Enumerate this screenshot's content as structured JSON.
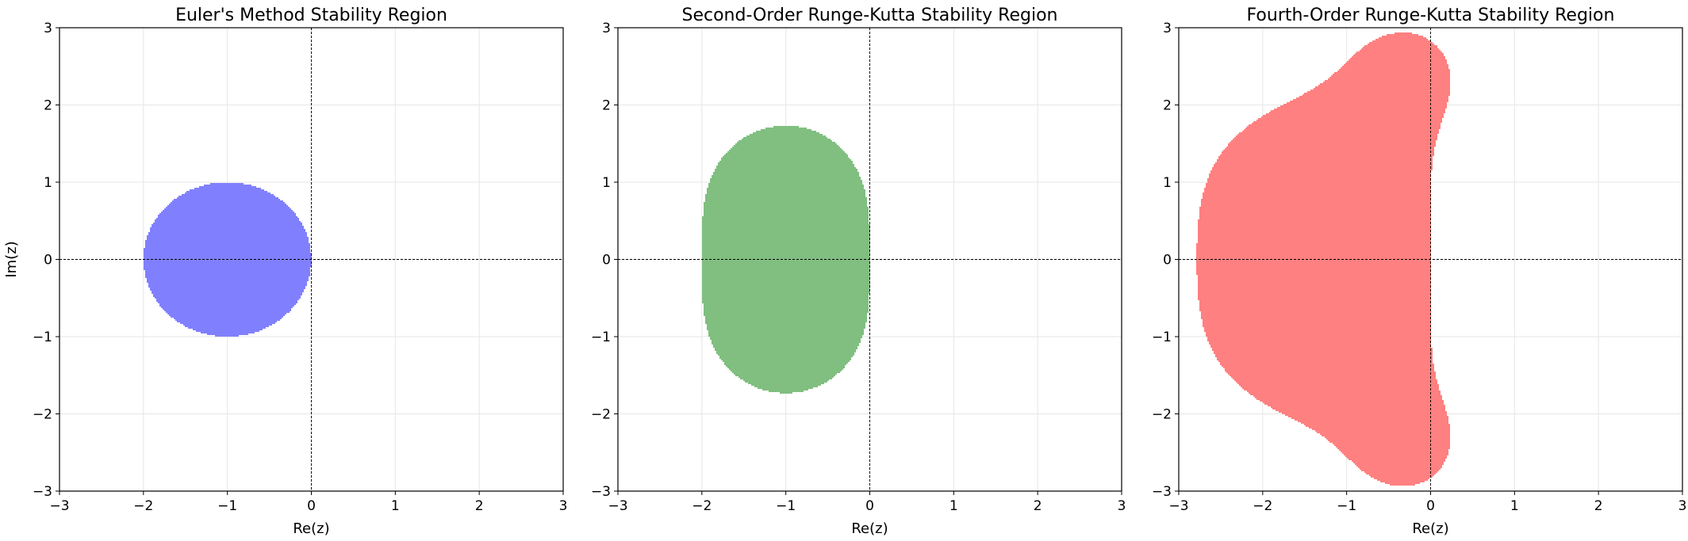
{
  "chart_data": [
    {
      "type": "area",
      "title": "Euler's Method Stability Region",
      "xlabel": "Re(z)",
      "ylabel": "Im(z)",
      "xlim": [
        -3,
        3
      ],
      "ylim": [
        -3,
        3
      ],
      "xticks": [
        -3,
        -2,
        -1,
        0,
        1,
        2,
        3
      ],
      "yticks": [
        -3,
        -2,
        -1,
        0,
        1,
        2,
        3
      ],
      "grid": true,
      "method": "euler",
      "color": "#8080ff"
    },
    {
      "type": "area",
      "title": "Second-Order Runge-Kutta Stability Region",
      "xlabel": "Re(z)",
      "ylabel": "",
      "xlim": [
        -3,
        3
      ],
      "ylim": [
        -3,
        3
      ],
      "xticks": [
        -3,
        -2,
        -1,
        0,
        1,
        2,
        3
      ],
      "yticks": [
        -3,
        -2,
        -1,
        0,
        1,
        2,
        3
      ],
      "grid": true,
      "method": "rk2",
      "color": "#80bf80"
    },
    {
      "type": "area",
      "title": "Fourth-Order Runge-Kutta Stability Region",
      "xlabel": "Re(z)",
      "ylabel": "",
      "xlim": [
        -3,
        3
      ],
      "ylim": [
        -3,
        3
      ],
      "xticks": [
        -3,
        -2,
        -1,
        0,
        1,
        2,
        3
      ],
      "yticks": [
        -3,
        -2,
        -1,
        0,
        1,
        2,
        3
      ],
      "grid": true,
      "method": "rk4",
      "color": "#ff8080"
    }
  ]
}
